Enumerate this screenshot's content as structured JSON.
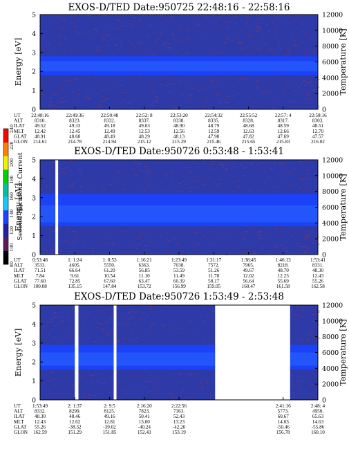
{
  "colors": {
    "background_blue": "#2d3aa8",
    "band_blue": "#1a44ff",
    "band_light": "#2f6cff",
    "speckle_red": "#8a3a60",
    "gap": "#ffffff"
  },
  "colorbar": {
    "label": "Second Harmonic Current",
    "ticks": [
      "80",
      "100",
      "120",
      "140",
      "160",
      "180",
      "200",
      "220",
      "240"
    ],
    "colors": [
      "#000000",
      "#5a1a5a",
      "#2020a0",
      "#1a44ff",
      "#14c8ff",
      "#00c0a0",
      "#00d000",
      "#f0f000",
      "#ff8000",
      "#ff0000"
    ]
  },
  "table_labels": [
    "UT",
    "ALT",
    "ILAT",
    "MLT",
    "GLAT",
    "GLON"
  ],
  "chart_data": [
    {
      "type": "heatmap",
      "title": "EXOS-D/TED   Date:950725  22:48:16 - 22:58:16",
      "ylabel": "Energy [eV]",
      "y2label": "Temperature [K]",
      "ylim": [
        0,
        5
      ],
      "y2lim": [
        0,
        12000
      ],
      "yticks": [
        "0",
        "1",
        "2",
        "3",
        "4",
        "5"
      ],
      "y2ticks": [
        "0",
        "2000",
        "4000",
        "6000",
        "8000",
        "10000",
        "12000"
      ],
      "band_ev": [
        1.8,
        2.8
      ],
      "gaps": [],
      "columns": [
        {
          "UT": "22:48:16",
          "ALT": "8310.",
          "ILAT": "49.52",
          "MLT": "12.42",
          "GLAT": "48.91",
          "GLON": "214.61"
        },
        {
          "UT": "22:49:36",
          "ALT": "8323.",
          "ILAT": "49.33",
          "MLT": "12.45",
          "GLAT": "48.68",
          "GLON": "214.78"
        },
        {
          "UT": "22:50:48",
          "ALT": "8332.",
          "ILAT": "49.18",
          "MLT": "12.49",
          "GLAT": "48.49",
          "GLON": "214.94"
        },
        {
          "UT": "22:52: 8",
          "ALT": "8337.",
          "ILAT": "49.03",
          "MLT": "12.53",
          "GLAT": "48.29",
          "GLON": "215.12"
        },
        {
          "UT": "22:53:20",
          "ALT": "8338.",
          "ILAT": "48.90",
          "MLT": "12.56",
          "GLAT": "48.13",
          "GLON": "215.29"
        },
        {
          "UT": "22:54:32",
          "ALT": "8335.",
          "ILAT": "48.79",
          "MLT": "12.59",
          "GLAT": "47.98",
          "GLON": "215.46"
        },
        {
          "UT": "22:55:52",
          "ALT": "8328.",
          "ILAT": "48.68",
          "MLT": "12.63",
          "GLAT": "47.82",
          "GLON": "215.65"
        },
        {
          "UT": "22:57: 4",
          "ALT": "8317.",
          "ILAT": "48.59",
          "MLT": "12.66",
          "GLAT": "47.69",
          "GLON": "215.83"
        },
        {
          "UT": "22:58:16",
          "ALT": "8303.",
          "ILAT": "48.51",
          "MLT": "12.70",
          "GLAT": "47.57",
          "GLON": "216.02"
        }
      ]
    },
    {
      "type": "heatmap",
      "title": "EXOS-D/TED   Date:950726   0:53:48 - 1:53:41",
      "ylabel": "Energy [eV]",
      "y2label": "Temperature [K]",
      "ylim": [
        0,
        5
      ],
      "y2lim": [
        0,
        12000
      ],
      "yticks": [
        "0",
        "1",
        "2",
        "3",
        "4",
        "5"
      ],
      "y2ticks": [
        "0",
        "2000",
        "4000",
        "6000",
        "8000",
        "10000",
        "12000"
      ],
      "band_ev": [
        1.5,
        3.2
      ],
      "gaps": [
        [
          0.055,
          0.065
        ]
      ],
      "columns": [
        {
          "UT": "0:53:48",
          "ALT": "3533.",
          "ILAT": "71.51",
          "MLT": "7.84",
          "GLAT": "77.60",
          "GLON": "100.08"
        },
        {
          "UT": "1: 1:24",
          "ALT": "4605.",
          "ILAT": "66.64",
          "MLT": "9.61",
          "GLAT": "72.85",
          "GLON": "135.15"
        },
        {
          "UT": "1: 8:53",
          "ALT": "5550.",
          "ILAT": "61.20",
          "MLT": "10.54",
          "GLAT": "67.60",
          "GLON": "147.84"
        },
        {
          "UT": "1:16:21",
          "ALT": "6363.",
          "ILAT": "56.85",
          "MLT": "11.10",
          "GLAT": "63.47",
          "GLON": "153.72"
        },
        {
          "UT": "1:23:49",
          "ALT": "7038.",
          "ILAT": "53.59",
          "MLT": "11.49",
          "GLAT": "60.39",
          "GLON": "156.99"
        },
        {
          "UT": "1:31:17",
          "ALT": "7572.",
          "ILAT": "51.26",
          "MLT": "11.78",
          "GLAT": "58.17",
          "GLON": "159.05"
        },
        {
          "UT": "1:38:45",
          "ALT": "7965.",
          "ILAT": "49.67",
          "MLT": "12.02",
          "GLAT": "56.64",
          "GLON": "160.47"
        },
        {
          "UT": "1:46:13",
          "ALT": "8218.",
          "ILAT": "48.70",
          "MLT": "12.23",
          "GLAT": "55.69",
          "GLON": "161.58"
        },
        {
          "UT": "1:53:41",
          "ALT": "8331.",
          "ILAT": "48.30",
          "MLT": "12.43",
          "GLAT": "55.26",
          "GLON": "162.58"
        }
      ]
    },
    {
      "type": "heatmap",
      "title": "EXOS-D/TED   Date:950726   1:53:49 - 2:53:48",
      "ylabel": "Energy [eV]",
      "y2label": "Temperature [K]",
      "ylim": [
        0,
        5
      ],
      "y2lim": [
        0,
        12000
      ],
      "yticks": [
        "0",
        "1",
        "2",
        "3",
        "4",
        "5"
      ],
      "y2ticks": [
        "0",
        "2000",
        "4000",
        "6000",
        "8000",
        "10000",
        "12000"
      ],
      "band_ev": [
        1.6,
        2.9
      ],
      "gaps": [
        [
          0.125,
          0.138
        ],
        [
          0.265,
          0.275
        ],
        [
          0.63,
          0.9
        ]
      ],
      "columns": [
        {
          "UT": "1:53:49",
          "ALT": "8332.",
          "ILAT": "48.30",
          "MLT": "12.43",
          "GLAT": "55.26",
          "GLON": "162.59"
        },
        {
          "UT": "2: 1:37",
          "ALT": "8299.",
          "ILAT": "48.46",
          "MLT": "12.62",
          "GLAT": "-38.32",
          "GLON": "151.29"
        },
        {
          "UT": "2: 9:5",
          "ALT": "8125.",
          "ILAT": "49.16",
          "MLT": "12.81",
          "GLAT": "-39.02",
          "GLON": "151.85"
        },
        {
          "UT": "2:16:20",
          "ALT": "7823.",
          "ILAT": "50.41",
          "MLT": "13.00",
          "GLAT": "-40.24",
          "GLON": "152.43"
        },
        {
          "UT": "2:22:56",
          "ALT": "7363.",
          "ILAT": "52.43",
          "MLT": "13.23",
          "GLAT": "-42.20",
          "GLON": "153.19"
        },
        {
          "UT": "",
          "ALT": "",
          "ILAT": "",
          "MLT": "",
          "GLAT": "",
          "GLON": ""
        },
        {
          "UT": "",
          "ALT": "",
          "ILAT": "",
          "MLT": "",
          "GLAT": "",
          "GLON": ""
        },
        {
          "UT": "2:41:16",
          "ALT": "5773.",
          "ILAT": "60.67",
          "MLT": "14.03",
          "GLAT": "-50.46",
          "GLON": "156.78"
        },
        {
          "UT": "2:48: 4",
          "ALT": "4950.",
          "ILAT": "65.63",
          "MLT": "14.63",
          "GLAT": "-55.86",
          "GLON": "160.10"
        }
      ]
    }
  ]
}
